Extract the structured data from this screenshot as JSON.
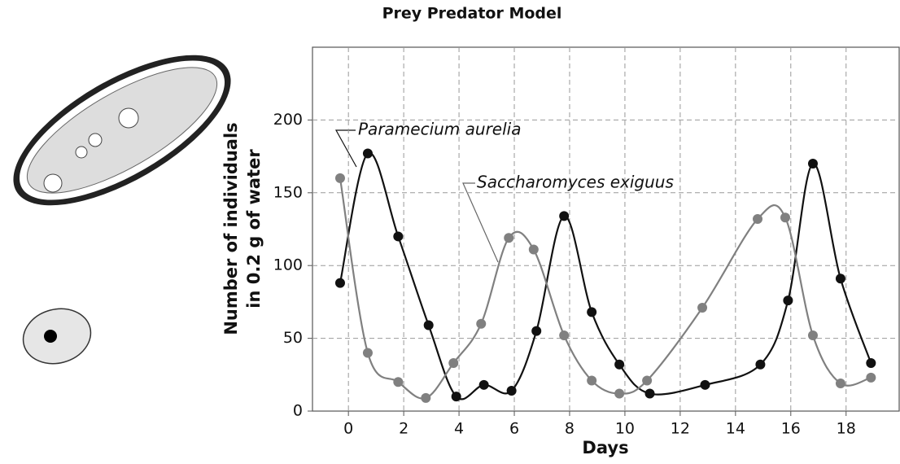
{
  "chart_data": {
    "type": "line",
    "title": "Prey Predator Model",
    "x_label": "Days",
    "y_label": [
      "Number of individuals",
      "in 0.2 g of water"
    ],
    "xlim": [
      -1.3,
      19.95
    ],
    "ylim": [
      0,
      250
    ],
    "xticks": [
      0,
      2,
      4,
      6,
      8,
      10,
      12,
      14,
      16,
      18
    ],
    "yticks": [
      0,
      50,
      100,
      150,
      200
    ],
    "grid": true,
    "series": [
      {
        "name": "Paramecium aurelia",
        "color": "#111111",
        "x": [
          -0.3,
          0.7,
          1.8,
          2.9,
          3.9,
          4.9,
          5.9,
          6.8,
          7.8,
          8.8,
          9.8,
          10.9,
          12.9,
          14.9,
          15.9,
          16.8,
          17.8,
          18.9
        ],
        "values": [
          88,
          177,
          120,
          59,
          10,
          18,
          14,
          55,
          134,
          68,
          32,
          12,
          18,
          32,
          76,
          170,
          91,
          33
        ]
      },
      {
        "name": "Saccharomyces exiguus",
        "color": "#808080",
        "x": [
          -0.3,
          0.7,
          1.8,
          2.8,
          3.8,
          4.8,
          5.8,
          6.7,
          7.8,
          8.8,
          9.8,
          10.8,
          12.8,
          14.8,
          15.8,
          16.8,
          17.8,
          18.9
        ],
        "values": [
          160,
          40,
          20,
          9,
          33,
          60,
          119,
          111,
          52,
          21,
          12,
          21,
          71,
          132,
          133,
          52,
          19,
          23
        ]
      }
    ]
  }
}
